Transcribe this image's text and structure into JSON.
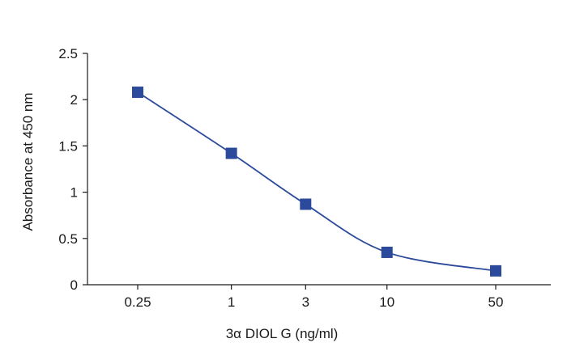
{
  "chart_data": {
    "type": "line",
    "title": "",
    "xlabel": "3α DIOL G (ng/ml)",
    "ylabel": "Absorbance at 450 nm",
    "x_scale": "log",
    "x_categories": [
      "0.25",
      "1",
      "3",
      "10",
      "50"
    ],
    "x_ticks": [
      0.25,
      1,
      3,
      10,
      50
    ],
    "ylim": [
      0,
      2.5
    ],
    "y_ticks": [
      0,
      0.5,
      1,
      1.5,
      2,
      2.5
    ],
    "y_tick_labels": [
      "0",
      "0.5",
      "1",
      "1.5",
      "2",
      "2.5"
    ],
    "grid": false,
    "legend": "none",
    "series": [
      {
        "x": [
          0.25,
          1,
          3,
          10,
          50
        ],
        "y": [
          2.08,
          1.42,
          0.87,
          0.35,
          0.15
        ],
        "marker": "square",
        "color": "#2b4a9b"
      }
    ]
  }
}
